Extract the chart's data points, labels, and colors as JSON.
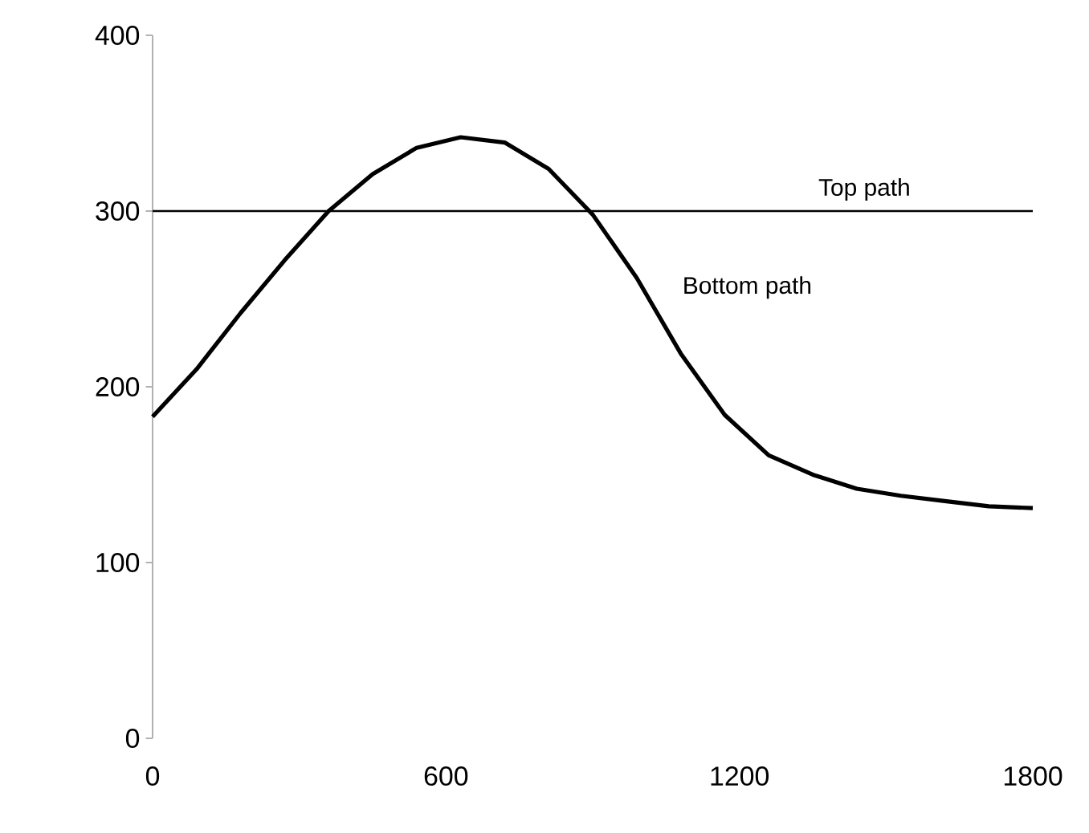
{
  "chart_data": {
    "type": "line",
    "x": [
      0,
      90,
      180,
      270,
      360,
      450,
      540,
      630,
      720,
      810,
      900,
      990,
      1080,
      1170,
      1260,
      1350,
      1440,
      1530,
      1620,
      1710,
      1800
    ],
    "series": [
      {
        "name": "Bottom path",
        "color": "#000000",
        "values": [
          183,
          210,
          242,
          272,
          300,
          321,
          336,
          342,
          339,
          324,
          298,
          262,
          219,
          184,
          161,
          150,
          142,
          138,
          135,
          132,
          131
        ]
      }
    ],
    "xlim": [
      0,
      1800
    ],
    "xticks": [
      0,
      600,
      1200,
      1800
    ],
    "ylim": [
      0,
      400
    ],
    "yticks": [
      0,
      100,
      200,
      300,
      400
    ],
    "ref_lines": [
      {
        "axis": "y",
        "value": 300,
        "color": "#000000",
        "label": "Top path"
      }
    ],
    "grid": false,
    "marker": "none",
    "line_style": "solid"
  }
}
